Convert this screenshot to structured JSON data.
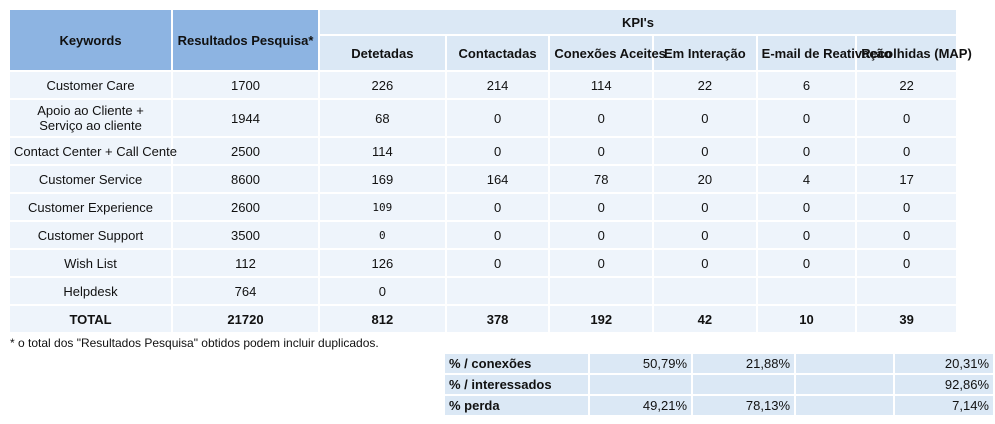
{
  "headers": {
    "keywords": "Keywords",
    "resultados": "Resultados Pesquisa*",
    "kpis": "KPI's",
    "detetadas": "Detetadas",
    "contactadas": "Contactadas",
    "conexoes": "Conexões Aceites",
    "interacao": "Em Interação",
    "email": "E-mail de Reativação",
    "recolhidas": "Recolhidas (MAP)"
  },
  "rows": [
    {
      "keyword": "Customer Care",
      "resultados": "1700",
      "detetadas": "226",
      "contactadas": "214",
      "conexoes": "114",
      "interacao": "22",
      "email": "6",
      "recolhidas": "22"
    },
    {
      "keyword": "Apoio ao Cliente + Serviço ao cliente",
      "resultados": "1944",
      "detetadas": "68",
      "contactadas": "0",
      "conexoes": "0",
      "interacao": "0",
      "email": "0",
      "recolhidas": "0"
    },
    {
      "keyword": "Contact Center + Call Cente",
      "resultados": "2500",
      "detetadas": "114",
      "contactadas": "0",
      "conexoes": "0",
      "interacao": "0",
      "email": "0",
      "recolhidas": "0"
    },
    {
      "keyword": "Customer Service",
      "resultados": "8600",
      "detetadas": "169",
      "contactadas": "164",
      "conexoes": "78",
      "interacao": "20",
      "email": "4",
      "recolhidas": "17"
    },
    {
      "keyword": "Customer Experience",
      "resultados": "2600",
      "detetadas": "109",
      "contactadas": "0",
      "conexoes": "0",
      "interacao": "0",
      "email": "0",
      "recolhidas": "0"
    },
    {
      "keyword": "Customer Support",
      "resultados": "3500",
      "detetadas": "0",
      "contactadas": "0",
      "conexoes": "0",
      "interacao": "0",
      "email": "0",
      "recolhidas": "0"
    },
    {
      "keyword": "Wish List",
      "resultados": "112",
      "detetadas": "126",
      "contactadas": "0",
      "conexoes": "0",
      "interacao": "0",
      "email": "0",
      "recolhidas": "0"
    },
    {
      "keyword": "Helpdesk",
      "resultados": "764",
      "detetadas": "0",
      "contactadas": "",
      "conexoes": "",
      "interacao": "",
      "email": "",
      "recolhidas": ""
    }
  ],
  "total": {
    "label": "TOTAL",
    "resultados": "21720",
    "detetadas": "812",
    "contactadas": "378",
    "conexoes": "192",
    "interacao": "42",
    "email": "10",
    "recolhidas": "39"
  },
  "footnote": "* o total dos \"Resultados Pesquisa\" obtidos podem incluir duplicados.",
  "percentages": [
    {
      "label": "% / conexões",
      "conexoes": "50,79%",
      "interacao": "21,88%",
      "email": "",
      "recolhidas": "20,31%"
    },
    {
      "label": "% / interessados",
      "conexoes": "",
      "interacao": "",
      "email": "",
      "recolhidas": "92,86%"
    },
    {
      "label": "% perda",
      "conexoes": "49,21%",
      "interacao": "78,13%",
      "email": "",
      "recolhidas": "7,14%"
    }
  ]
}
